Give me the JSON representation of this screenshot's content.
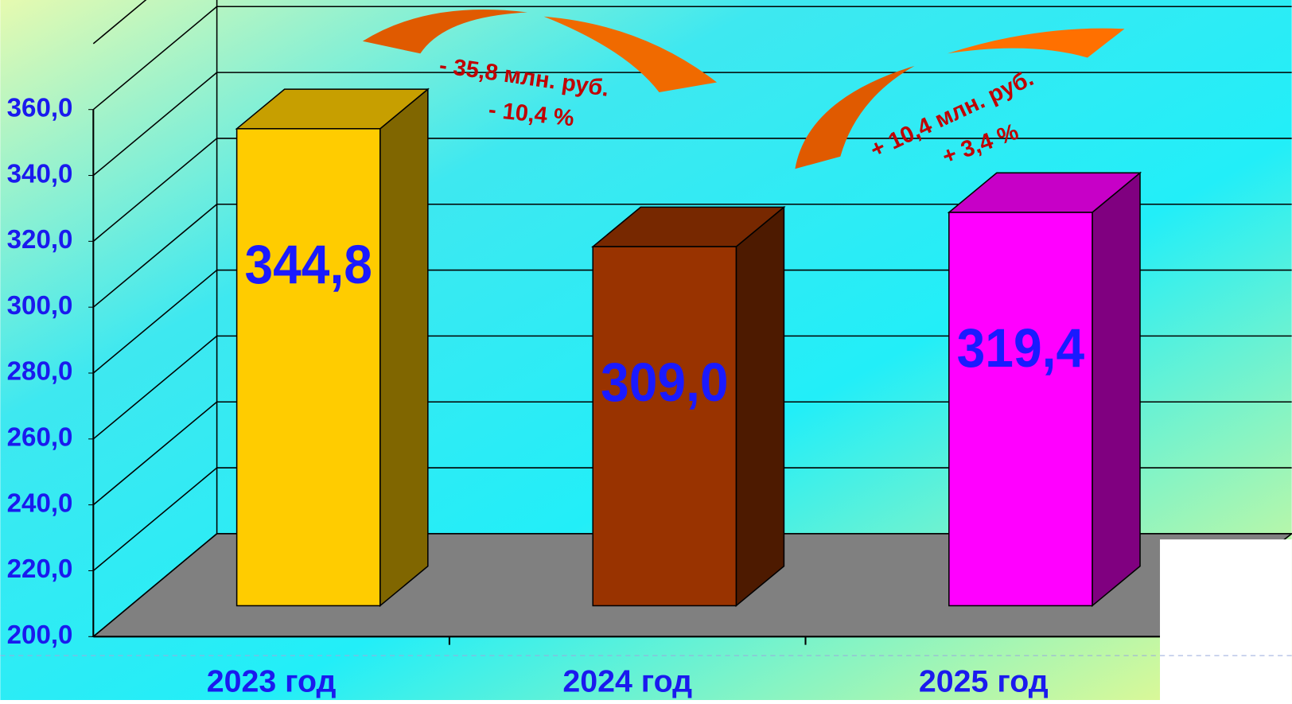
{
  "chart_data": {
    "type": "bar3d",
    "categories": [
      "2023 год",
      "2024 год",
      "2025 год"
    ],
    "values": [
      344.8,
      309.0,
      319.4
    ],
    "value_labels": [
      "344,8",
      "309,0",
      "319,4"
    ],
    "colors": [
      "#ffcc00",
      "#993300",
      "#ff00ff"
    ],
    "ylim": [
      200,
      380
    ],
    "yticks": [
      {
        "value": 200,
        "label": "200,0"
      },
      {
        "value": 220,
        "label": "220,0"
      },
      {
        "value": 240,
        "label": "240,0"
      },
      {
        "value": 260,
        "label": "260,0"
      },
      {
        "value": 280,
        "label": "280,0"
      },
      {
        "value": 300,
        "label": "300,0"
      },
      {
        "value": 320,
        "label": "320,0"
      },
      {
        "value": 340,
        "label": "340,0"
      },
      {
        "value": 360,
        "label": "360,0"
      }
    ],
    "grid": true,
    "annotations": [
      "- 35,8 млн. руб.",
      "- 10,4 %",
      "+ 10,4 млн. руб.",
      "+ 3,4 %"
    ]
  }
}
